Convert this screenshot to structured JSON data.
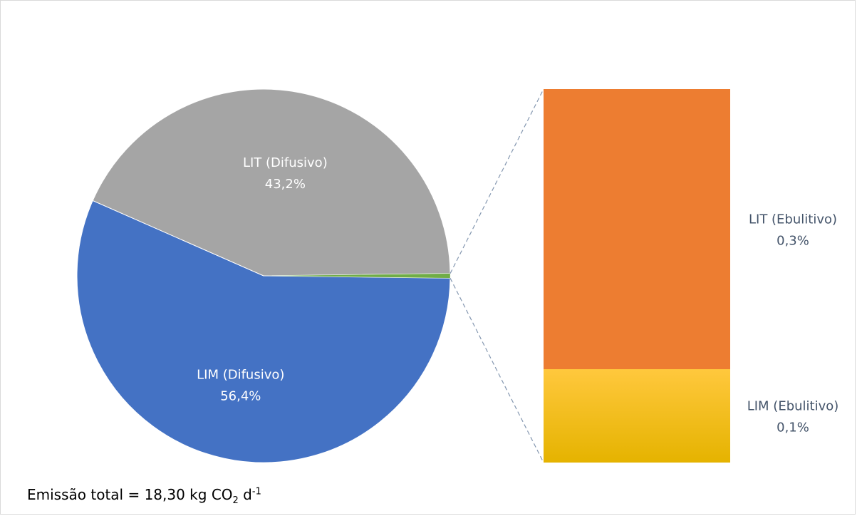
{
  "colors": {
    "lim_difusivo": "#4472C4",
    "lit_difusivo": "#A5A5A5",
    "lit_ebulitivo": "#ED7D31",
    "lim_ebulitivo_top": "#FFC83D",
    "lim_ebulitivo_bottom": "#E5B300",
    "connector": "#8497B0",
    "label_on_pie": "#ffffff",
    "label_bar": "#44546A"
  },
  "chart_data": {
    "type": "bar-of-pie",
    "title": "",
    "pie": {
      "slices": [
        {
          "key": "lim_difusivo",
          "name": "LIM (Difusivo)",
          "value": 56.4,
          "label": "56,4%"
        },
        {
          "key": "lit_difusivo",
          "name": "LIT (Difusivo)",
          "value": 43.2,
          "label": "43,2%"
        },
        {
          "key": "ebulitivo_group",
          "name": "",
          "value": 0.4,
          "label": ""
        }
      ]
    },
    "bar": {
      "segments": [
        {
          "key": "lit_ebulitivo",
          "name": "LIT (Ebulitivo)",
          "value": 0.3,
          "label": "0,3%"
        },
        {
          "key": "lim_ebulitivo",
          "name": "LIM (Ebulitivo)",
          "value": 0.1,
          "label": "0,1%"
        }
      ]
    },
    "footnote": {
      "prefix": "Emissão total = 18,30 kg CO",
      "sub": "2",
      "mid": " d",
      "sup": "-1"
    }
  }
}
